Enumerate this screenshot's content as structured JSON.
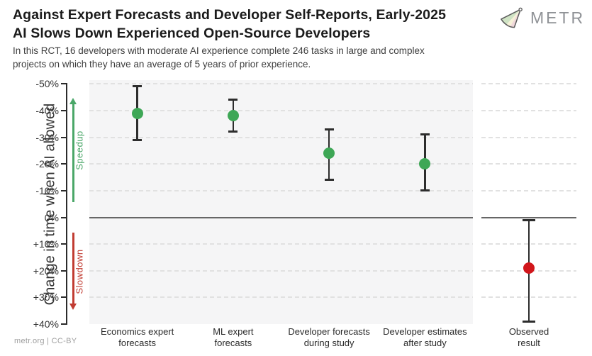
{
  "header": {
    "title_line1": "Against Expert Forecasts and Developer Self-Reports, Early-2025",
    "title_line2": "AI Slows Down Experienced Open-Source Developers",
    "subtitle_line1": "In this RCT, 16 developers with moderate AI experience complete 246 tasks in large and complex",
    "subtitle_line2": "projects on which they have an average of 5 years of prior experience.",
    "logo_text": "METR"
  },
  "footer": {
    "attribution": "metr.org | CC-BY"
  },
  "chart_data": {
    "type": "scatter",
    "title": "Against Expert Forecasts and Developer Self-Reports, Early-2025 AI Slows Down Experienced Open-Source Developers",
    "subtitle": "In this RCT, 16 developers with moderate AI experience complete 246 tasks in large and complex projects on which they have an average of 5 years of prior experience.",
    "ylabel": "Change in time when AI allowed",
    "xlabel": "",
    "ylim": [
      -51.5,
      40
    ],
    "y_axis_inverted_note": "negative (speedup) plotted at top, positive (slowdown) at bottom",
    "grid": "dashed horizontal lines every 10%, solid line at 0%",
    "legend_position": "none",
    "yticks": [
      {
        "v": -50,
        "label": "-50%"
      },
      {
        "v": -40,
        "label": "-40%"
      },
      {
        "v": -30,
        "label": "-30%"
      },
      {
        "v": -20,
        "label": "-20%"
      },
      {
        "v": -10,
        "label": "-10%"
      },
      {
        "v": 0,
        "label": "0%"
      },
      {
        "v": 10,
        "label": "+10%"
      },
      {
        "v": 20,
        "label": "+20%"
      },
      {
        "v": 30,
        "label": "+30%"
      },
      {
        "v": 40,
        "label": "+40%"
      }
    ],
    "gridline_pcts": [
      -50,
      -40,
      -30,
      -20,
      -10,
      10,
      20,
      30
    ],
    "direction_annotations": [
      {
        "id": "speedup",
        "label": "Speedup",
        "color": "#4aa768",
        "arrow": "up",
        "span_pct": [
          -44.7,
          -5.7
        ]
      },
      {
        "id": "slowdown",
        "label": "Slowdown",
        "color": "#c13c32",
        "arrow": "down",
        "span_pct": [
          5.7,
          34.7
        ]
      }
    ],
    "points": [
      {
        "category_lines": [
          "Economics expert",
          "forecasts"
        ],
        "panel": "forecasts",
        "value_pct": -39,
        "ci_pct": [
          -49,
          -29
        ],
        "color": "#3ea756"
      },
      {
        "category_lines": [
          "ML expert",
          "forecasts"
        ],
        "panel": "forecasts",
        "value_pct": -38,
        "ci_pct": [
          -44,
          -32
        ],
        "color": "#3ea756"
      },
      {
        "category_lines": [
          "Developer forecasts",
          "during study"
        ],
        "panel": "forecasts",
        "value_pct": -24,
        "ci_pct": [
          -33,
          -14
        ],
        "color": "#3ea756"
      },
      {
        "category_lines": [
          "Developer estimates",
          "after study"
        ],
        "panel": "forecasts",
        "value_pct": -20,
        "ci_pct": [
          -31,
          -10
        ],
        "color": "#3ea756"
      },
      {
        "category_lines": [
          "Observed",
          "result"
        ],
        "panel": "observed",
        "value_pct": 19,
        "ci_pct": [
          1,
          39
        ],
        "color": "#d1161b"
      }
    ]
  }
}
